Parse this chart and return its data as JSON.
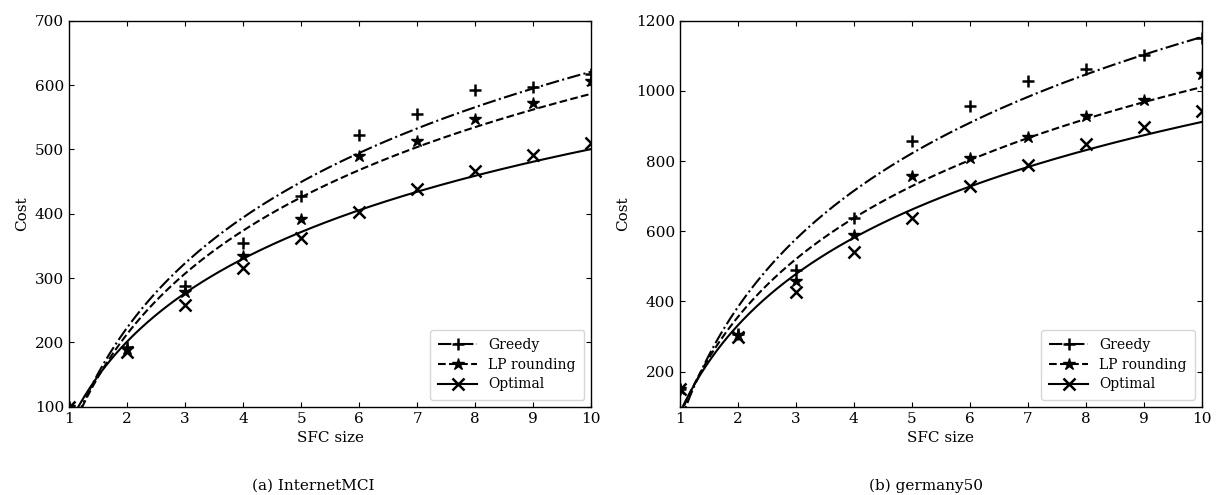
{
  "x": [
    1,
    2,
    3,
    4,
    5,
    6,
    7,
    8,
    9,
    10
  ],
  "panel_a": {
    "title": "(a) InternetMCI",
    "ylabel": "Cost",
    "xlabel": "SFC size",
    "ylim": [
      100,
      700
    ],
    "yticks": [
      100,
      200,
      300,
      400,
      500,
      600,
      700
    ],
    "greedy": [
      100,
      193,
      287,
      355,
      427,
      523,
      555,
      593,
      597,
      618
    ],
    "lp_rounding": [
      100,
      190,
      278,
      335,
      392,
      490,
      513,
      548,
      572,
      607
    ],
    "optimal": [
      100,
      185,
      258,
      315,
      363,
      403,
      438,
      467,
      492,
      510
    ]
  },
  "panel_b": {
    "title": "(b) germany50",
    "ylabel": "Cost",
    "xlabel": "SFC size",
    "ylim": [
      100,
      1200
    ],
    "yticks": [
      200,
      400,
      600,
      800,
      1000,
      1200
    ],
    "greedy": [
      150,
      308,
      490,
      638,
      858,
      958,
      1028,
      1062,
      1103,
      1150
    ],
    "lp_rounding": [
      150,
      303,
      458,
      588,
      758,
      808,
      868,
      928,
      973,
      1048
    ],
    "optimal": [
      150,
      298,
      428,
      542,
      638,
      728,
      788,
      848,
      898,
      943
    ]
  },
  "line_color": "#000000",
  "bg_color": "#ffffff",
  "legend_loc_a": "center right",
  "legend_loc_b": "center right"
}
